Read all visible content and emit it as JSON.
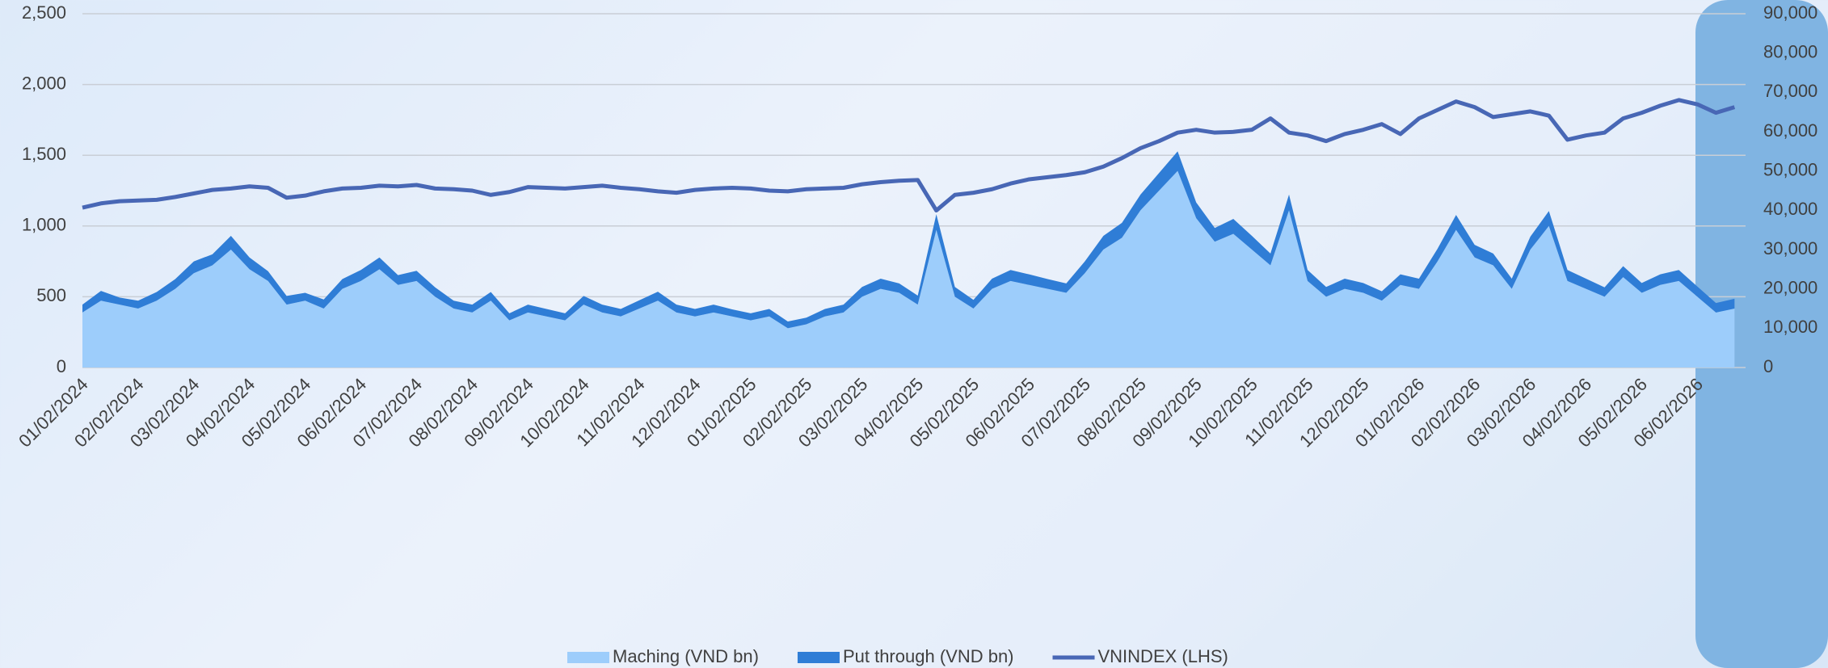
{
  "chart_data": {
    "type": "area",
    "categories": [
      "01/02/2024",
      null,
      null,
      "02/02/2024",
      null,
      null,
      "03/02/2024",
      null,
      null,
      "04/02/2024",
      null,
      null,
      "05/02/2024",
      null,
      null,
      "06/02/2024",
      null,
      null,
      "07/02/2024",
      null,
      null,
      "08/02/2024",
      null,
      null,
      "09/02/2024",
      null,
      null,
      "10/02/2024",
      null,
      null,
      "11/02/2024",
      null,
      null,
      "12/02/2024",
      null,
      null,
      "01/02/2025",
      null,
      null,
      "02/02/2025",
      null,
      null,
      "03/02/2025",
      null,
      null,
      "04/02/2025",
      null,
      null,
      "05/02/2025",
      null,
      null,
      "06/02/2025",
      null,
      null,
      "07/02/2025",
      null,
      null,
      "08/02/2025",
      null,
      null,
      "09/02/2025",
      null,
      null,
      "10/02/2025",
      null,
      null,
      "11/02/2025",
      null,
      null,
      "12/02/2025",
      null,
      null,
      "01/02/2026",
      null,
      null,
      "02/02/2026",
      null,
      null,
      "03/02/2026",
      null,
      null,
      "04/02/2026",
      null,
      null,
      "05/02/2026",
      null,
      null,
      "06/02/2026",
      null,
      null
    ],
    "series": [
      {
        "name": "Maching (VND bn)",
        "color": "#9dcdfb",
        "axis": "y2",
        "values": [
          14000,
          17000,
          16000,
          15000,
          17000,
          20000,
          24000,
          26000,
          30000,
          25000,
          22000,
          16000,
          17000,
          15000,
          20000,
          22000,
          25000,
          21000,
          22000,
          18000,
          15000,
          14000,
          17000,
          12000,
          14000,
          13000,
          12000,
          16000,
          14000,
          13000,
          15000,
          17000,
          14000,
          13000,
          14000,
          13000,
          12000,
          13000,
          10000,
          11000,
          13000,
          14000,
          18000,
          20000,
          19000,
          16000,
          35000,
          18000,
          15000,
          20000,
          22000,
          21000,
          20000,
          19000,
          24000,
          30000,
          33000,
          40000,
          45000,
          50000,
          38000,
          32000,
          34000,
          30000,
          26000,
          40000,
          22000,
          18000,
          20000,
          19000,
          17000,
          21000,
          20000,
          27000,
          35000,
          28000,
          26000,
          20000,
          30000,
          36000,
          22000,
          20000,
          18000,
          23000,
          19000,
          21000,
          22000,
          18000,
          14000,
          15000
        ]
      },
      {
        "name": "Put through (VND bn)",
        "color": "#2f7dd6",
        "axis": "y2",
        "values": [
          2000,
          2500,
          1800,
          2000,
          2200,
          2500,
          3000,
          2800,
          3500,
          3000,
          2500,
          2200,
          2000,
          2300,
          2500,
          2800,
          3000,
          2500,
          2600,
          2400,
          2000,
          2000,
          2200,
          1800,
          2000,
          1900,
          1800,
          2200,
          2000,
          1900,
          2100,
          2300,
          2000,
          1900,
          2000,
          1800,
          1800,
          1900,
          1700,
          1700,
          1900,
          2000,
          2500,
          2600,
          2400,
          2300,
          4000,
          2500,
          2200,
          2600,
          2800,
          2700,
          2500,
          2400,
          3000,
          3500,
          3800,
          4000,
          4500,
          5000,
          4000,
          3500,
          3800,
          3500,
          3000,
          4000,
          2800,
          2500,
          2600,
          2500,
          2400,
          2700,
          2600,
          3200,
          3800,
          3200,
          3000,
          2600,
          3300,
          3800,
          2800,
          2600,
          2400,
          2800,
          2500,
          2700,
          2800,
          2600,
          2400,
          2500
        ]
      },
      {
        "name": "VNINDEX (LHS)",
        "color": "#4867b5",
        "type": "line",
        "values": [
          1130,
          1160,
          1175,
          1180,
          1185,
          1205,
          1230,
          1255,
          1265,
          1280,
          1270,
          1200,
          1215,
          1245,
          1265,
          1270,
          1285,
          1280,
          1290,
          1265,
          1260,
          1250,
          1220,
          1240,
          1275,
          1270,
          1265,
          1275,
          1285,
          1270,
          1260,
          1245,
          1235,
          1255,
          1265,
          1270,
          1265,
          1250,
          1245,
          1260,
          1265,
          1270,
          1295,
          1310,
          1320,
          1325,
          1110,
          1220,
          1235,
          1260,
          1300,
          1330,
          1345,
          1360,
          1380,
          1420,
          1480,
          1550,
          1600,
          1660,
          1680,
          1660,
          1665,
          1680,
          1760,
          1660,
          1640,
          1600,
          1650,
          1680,
          1720,
          1650,
          1760,
          1820,
          1880,
          1840,
          1770,
          1790,
          1810,
          1780,
          1610,
          1640,
          1660,
          1760,
          1800,
          1850,
          1890,
          1860,
          1800,
          1840
        ]
      }
    ],
    "ylim": [
      0,
      2500
    ],
    "yticks": [
      0,
      500,
      {
        "value": 1000,
        "label": "1,000"
      },
      {
        "value": 1500,
        "label": "1,500"
      },
      {
        "value": 2000,
        "label": "2,000"
      },
      {
        "value": 2500,
        "label": "2,500"
      }
    ],
    "y2lim": [
      0,
      90000
    ],
    "y2ticks": [
      0,
      {
        "value": 10000,
        "label": "10,000"
      },
      {
        "value": 20000,
        "label": "20,000"
      },
      {
        "value": 30000,
        "label": "30,000"
      },
      {
        "value": 40000,
        "label": "40,000"
      },
      {
        "value": 50000,
        "label": "50,000"
      },
      {
        "value": 60000,
        "label": "60,000"
      },
      {
        "value": 70000,
        "label": "70,000"
      },
      {
        "value": 80000,
        "label": "80,000"
      },
      {
        "value": 90000,
        "label": "90,000"
      }
    ],
    "grid": true,
    "legend": "bottom"
  }
}
